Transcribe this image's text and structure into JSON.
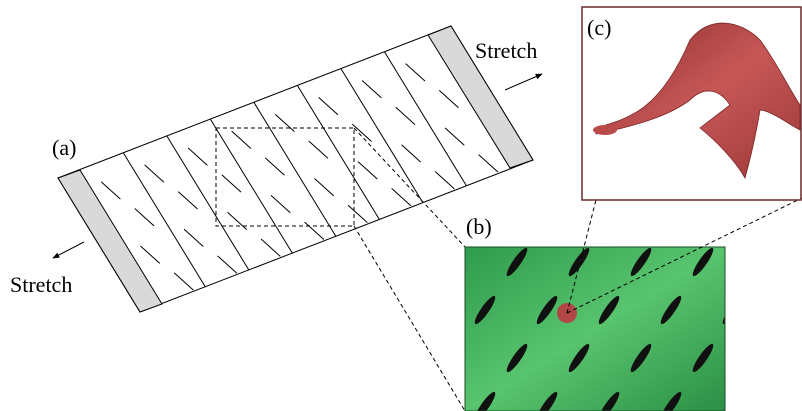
{
  "panel_a": {
    "label": "(a)",
    "stretch_labels": [
      "Stretch",
      "Stretch"
    ]
  },
  "panel_b": {
    "label": "(b)"
  },
  "panel_c": {
    "label": "(c)"
  }
}
